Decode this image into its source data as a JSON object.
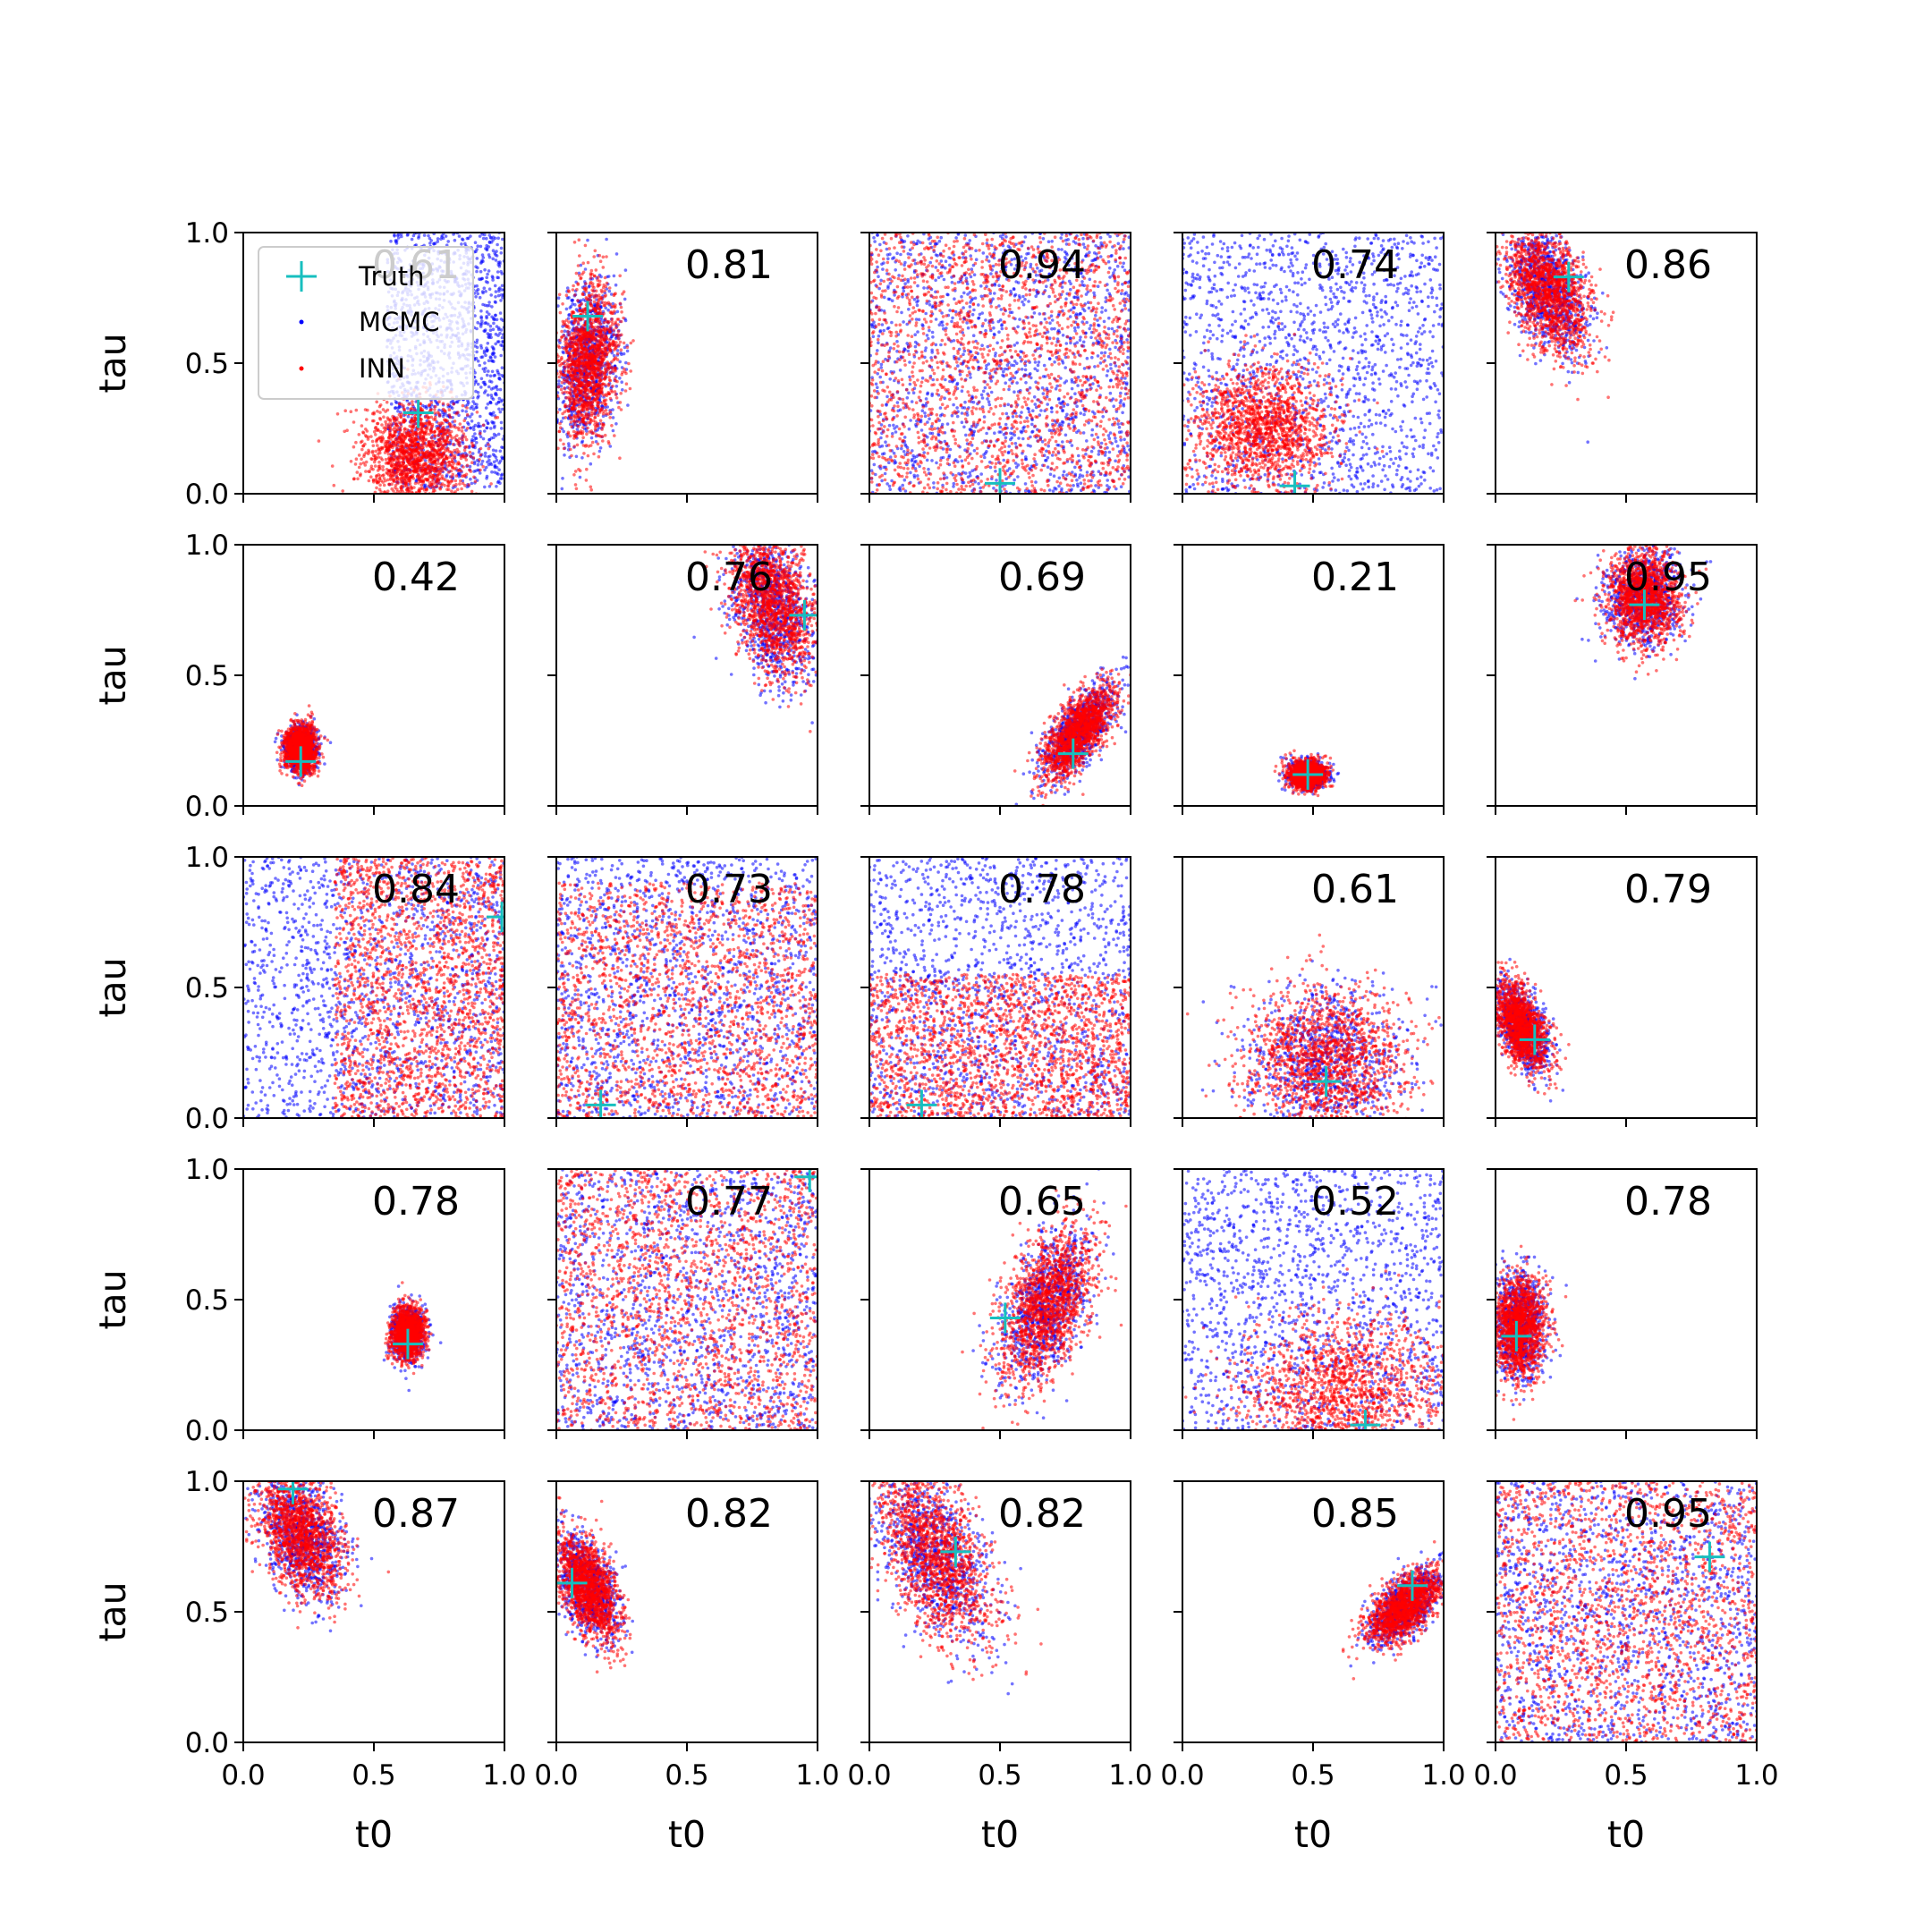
{
  "figure": {
    "grid_rows": 5,
    "grid_cols": 5,
    "xlabel": "t0",
    "ylabel": "tau",
    "xlim": [
      0.0,
      1.0
    ],
    "ylim": [
      0.0,
      1.0
    ],
    "xticks": [
      "0.0",
      "0.5",
      "1.0"
    ],
    "yticks": [
      "0.0",
      "0.5",
      "1.0"
    ]
  },
  "colors": {
    "truth": "#17bfbf",
    "mcmc": "#0000ff",
    "inn": "#ff0000",
    "axis": "#000000"
  },
  "legend": {
    "items": [
      {
        "label": "Truth",
        "marker": "plus-icon"
      },
      {
        "label": "MCMC",
        "marker": "dot-icon"
      },
      {
        "label": "INN",
        "marker": "dot-icon"
      }
    ]
  },
  "chart_data": {
    "type": "scatter",
    "description_series": [
      "Truth",
      "MCMC",
      "INN"
    ],
    "panels": [
      {
        "row": 0,
        "col": 0,
        "score": "0.61",
        "truth": [
          0.67,
          0.31
        ],
        "mcmc": {
          "kind": "uniform",
          "t0": [
            0.55,
            1.0
          ],
          "tau": [
            0.02,
            1.0
          ]
        },
        "inn": {
          "kind": "ellipse",
          "cx": 0.66,
          "cy": 0.15,
          "sx": 0.1,
          "sy": 0.1,
          "corr": 0.0
        }
      },
      {
        "row": 0,
        "col": 1,
        "score": "0.81",
        "truth": [
          0.12,
          0.68
        ],
        "mcmc": {
          "kind": "ellipse",
          "cx": 0.12,
          "cy": 0.5,
          "sx": 0.06,
          "sy": 0.15,
          "corr": 0.2
        },
        "inn": {
          "kind": "ellipse",
          "cx": 0.12,
          "cy": 0.5,
          "sx": 0.06,
          "sy": 0.16,
          "corr": 0.2
        }
      },
      {
        "row": 0,
        "col": 2,
        "score": "0.94",
        "truth": [
          0.5,
          0.04
        ],
        "mcmc": {
          "kind": "uniform",
          "t0": [
            0.0,
            1.0
          ],
          "tau": [
            0.0,
            1.0
          ]
        },
        "inn": {
          "kind": "uniform",
          "t0": [
            0.0,
            1.0
          ],
          "tau": [
            0.0,
            1.0
          ]
        }
      },
      {
        "row": 0,
        "col": 3,
        "score": "0.74",
        "truth": [
          0.43,
          0.03
        ],
        "mcmc": {
          "kind": "uniform",
          "t0": [
            0.0,
            1.0
          ],
          "tau": [
            0.0,
            1.0
          ]
        },
        "inn": {
          "kind": "ellipse",
          "cx": 0.3,
          "cy": 0.25,
          "sx": 0.14,
          "sy": 0.12,
          "corr": 0.0
        }
      },
      {
        "row": 0,
        "col": 4,
        "score": "0.86",
        "truth": [
          0.28,
          0.83
        ],
        "mcmc": {
          "kind": "ellipse",
          "cx": 0.2,
          "cy": 0.78,
          "sx": 0.08,
          "sy": 0.12,
          "corr": -0.4
        },
        "inn": {
          "kind": "ellipse",
          "cx": 0.2,
          "cy": 0.78,
          "sx": 0.08,
          "sy": 0.12,
          "corr": -0.4
        }
      },
      {
        "row": 1,
        "col": 0,
        "score": "0.42",
        "truth": [
          0.22,
          0.17
        ],
        "mcmc": {
          "kind": "ellipse",
          "cx": 0.22,
          "cy": 0.22,
          "sx": 0.03,
          "sy": 0.04,
          "corr": 0.0
        },
        "inn": {
          "kind": "ellipse",
          "cx": 0.22,
          "cy": 0.22,
          "sx": 0.03,
          "sy": 0.045,
          "corr": 0.0
        }
      },
      {
        "row": 1,
        "col": 1,
        "score": "0.76",
        "truth": [
          0.95,
          0.73
        ],
        "mcmc": {
          "kind": "ellipse",
          "cx": 0.83,
          "cy": 0.75,
          "sx": 0.08,
          "sy": 0.14,
          "corr": -0.3
        },
        "inn": {
          "kind": "ellipse",
          "cx": 0.83,
          "cy": 0.78,
          "sx": 0.08,
          "sy": 0.14,
          "corr": -0.3
        }
      },
      {
        "row": 1,
        "col": 2,
        "score": "0.69",
        "truth": [
          0.78,
          0.2
        ],
        "mcmc": {
          "kind": "ellipse",
          "cx": 0.8,
          "cy": 0.28,
          "sx": 0.07,
          "sy": 0.09,
          "corr": 0.7
        },
        "inn": {
          "kind": "ellipse",
          "cx": 0.8,
          "cy": 0.28,
          "sx": 0.07,
          "sy": 0.09,
          "corr": 0.7
        }
      },
      {
        "row": 1,
        "col": 3,
        "score": "0.21",
        "truth": [
          0.48,
          0.12
        ],
        "mcmc": {
          "kind": "ellipse",
          "cx": 0.48,
          "cy": 0.12,
          "sx": 0.035,
          "sy": 0.025,
          "corr": 0.0
        },
        "inn": {
          "kind": "ellipse",
          "cx": 0.48,
          "cy": 0.12,
          "sx": 0.035,
          "sy": 0.025,
          "corr": 0.0
        }
      },
      {
        "row": 1,
        "col": 4,
        "score": "0.95",
        "truth": [
          0.57,
          0.77
        ],
        "mcmc": {
          "kind": "ellipse",
          "cx": 0.57,
          "cy": 0.8,
          "sx": 0.07,
          "sy": 0.09,
          "corr": 0.0
        },
        "inn": {
          "kind": "ellipse",
          "cx": 0.57,
          "cy": 0.8,
          "sx": 0.07,
          "sy": 0.09,
          "corr": 0.0
        }
      },
      {
        "row": 2,
        "col": 0,
        "score": "0.84",
        "truth": [
          0.99,
          0.77
        ],
        "mcmc": {
          "kind": "uniform",
          "t0": [
            0.0,
            1.0
          ],
          "tau": [
            0.0,
            1.0
          ]
        },
        "inn": {
          "kind": "uniform",
          "t0": [
            0.35,
            1.0
          ],
          "tau": [
            0.0,
            1.0
          ]
        }
      },
      {
        "row": 2,
        "col": 1,
        "score": "0.73",
        "truth": [
          0.17,
          0.05
        ],
        "mcmc": {
          "kind": "uniform",
          "t0": [
            0.0,
            1.0
          ],
          "tau": [
            0.0,
            1.0
          ]
        },
        "inn": {
          "kind": "uniform",
          "t0": [
            0.0,
            1.0
          ],
          "tau": [
            0.0,
            0.9
          ]
        }
      },
      {
        "row": 2,
        "col": 2,
        "score": "0.78",
        "truth": [
          0.2,
          0.05
        ],
        "mcmc": {
          "kind": "uniform",
          "t0": [
            0.0,
            1.0
          ],
          "tau": [
            0.0,
            1.0
          ]
        },
        "inn": {
          "kind": "uniform",
          "t0": [
            0.0,
            1.0
          ],
          "tau": [
            0.0,
            0.55
          ]
        }
      },
      {
        "row": 2,
        "col": 3,
        "score": "0.61",
        "truth": [
          0.55,
          0.14
        ],
        "mcmc": {
          "kind": "ellipse",
          "cx": 0.55,
          "cy": 0.22,
          "sx": 0.15,
          "sy": 0.14,
          "corr": 0.0
        },
        "inn": {
          "kind": "ellipse",
          "cx": 0.55,
          "cy": 0.22,
          "sx": 0.15,
          "sy": 0.14,
          "corr": 0.0
        }
      },
      {
        "row": 2,
        "col": 4,
        "score": "0.79",
        "truth": [
          0.15,
          0.3
        ],
        "mcmc": {
          "kind": "ellipse",
          "cx": 0.1,
          "cy": 0.35,
          "sx": 0.05,
          "sy": 0.08,
          "corr": -0.5
        },
        "inn": {
          "kind": "ellipse",
          "cx": 0.1,
          "cy": 0.35,
          "sx": 0.05,
          "sy": 0.08,
          "corr": -0.5
        }
      },
      {
        "row": 3,
        "col": 0,
        "score": "0.78",
        "truth": [
          0.63,
          0.33
        ],
        "mcmc": {
          "kind": "ellipse",
          "cx": 0.63,
          "cy": 0.37,
          "sx": 0.03,
          "sy": 0.05,
          "corr": 0.0
        },
        "inn": {
          "kind": "ellipse",
          "cx": 0.63,
          "cy": 0.37,
          "sx": 0.03,
          "sy": 0.05,
          "corr": 0.0
        }
      },
      {
        "row": 3,
        "col": 1,
        "score": "0.77",
        "truth": [
          0.97,
          0.97
        ],
        "mcmc": {
          "kind": "uniform",
          "t0": [
            0.0,
            1.0
          ],
          "tau": [
            0.0,
            1.0
          ]
        },
        "inn": {
          "kind": "uniform",
          "t0": [
            0.0,
            1.0
          ],
          "tau": [
            0.0,
            1.0
          ]
        }
      },
      {
        "row": 3,
        "col": 2,
        "score": "0.65",
        "truth": [
          0.52,
          0.43
        ],
        "mcmc": {
          "kind": "ellipse",
          "cx": 0.68,
          "cy": 0.48,
          "sx": 0.09,
          "sy": 0.15,
          "corr": 0.5
        },
        "inn": {
          "kind": "ellipse",
          "cx": 0.68,
          "cy": 0.48,
          "sx": 0.09,
          "sy": 0.15,
          "corr": 0.5
        }
      },
      {
        "row": 3,
        "col": 3,
        "score": "0.52",
        "truth": [
          0.7,
          0.02
        ],
        "mcmc": {
          "kind": "uniform",
          "t0": [
            0.0,
            1.0
          ],
          "tau": [
            0.0,
            1.0
          ]
        },
        "inn": {
          "kind": "ellipse",
          "cx": 0.62,
          "cy": 0.15,
          "sx": 0.2,
          "sy": 0.15,
          "corr": 0.0
        }
      },
      {
        "row": 3,
        "col": 4,
        "score": "0.78",
        "truth": [
          0.08,
          0.36
        ],
        "mcmc": {
          "kind": "ellipse",
          "cx": 0.09,
          "cy": 0.4,
          "sx": 0.05,
          "sy": 0.1,
          "corr": 0.0
        },
        "inn": {
          "kind": "ellipse",
          "cx": 0.09,
          "cy": 0.4,
          "sx": 0.05,
          "sy": 0.1,
          "corr": 0.0
        }
      },
      {
        "row": 4,
        "col": 0,
        "score": "0.87",
        "truth": [
          0.19,
          0.97
        ],
        "mcmc": {
          "kind": "ellipse",
          "cx": 0.22,
          "cy": 0.8,
          "sx": 0.08,
          "sy": 0.12,
          "corr": -0.4
        },
        "inn": {
          "kind": "ellipse",
          "cx": 0.22,
          "cy": 0.8,
          "sx": 0.08,
          "sy": 0.12,
          "corr": -0.4
        }
      },
      {
        "row": 4,
        "col": 1,
        "score": "0.82",
        "truth": [
          0.06,
          0.61
        ],
        "mcmc": {
          "kind": "ellipse",
          "cx": 0.12,
          "cy": 0.6,
          "sx": 0.06,
          "sy": 0.1,
          "corr": -0.5
        },
        "inn": {
          "kind": "ellipse",
          "cx": 0.12,
          "cy": 0.6,
          "sx": 0.06,
          "sy": 0.1,
          "corr": -0.5
        }
      },
      {
        "row": 4,
        "col": 2,
        "score": "0.82",
        "truth": [
          0.33,
          0.73
        ],
        "mcmc": {
          "kind": "ellipse",
          "cx": 0.25,
          "cy": 0.72,
          "sx": 0.11,
          "sy": 0.17,
          "corr": -0.5
        },
        "inn": {
          "kind": "ellipse",
          "cx": 0.25,
          "cy": 0.72,
          "sx": 0.11,
          "sy": 0.17,
          "corr": -0.5
        }
      },
      {
        "row": 4,
        "col": 3,
        "score": "0.85",
        "truth": [
          0.88,
          0.6
        ],
        "mcmc": {
          "kind": "ellipse",
          "cx": 0.85,
          "cy": 0.52,
          "sx": 0.07,
          "sy": 0.07,
          "corr": 0.6
        },
        "inn": {
          "kind": "ellipse",
          "cx": 0.85,
          "cy": 0.52,
          "sx": 0.07,
          "sy": 0.07,
          "corr": 0.6
        }
      },
      {
        "row": 4,
        "col": 4,
        "score": "0.95",
        "truth": [
          0.82,
          0.71
        ],
        "mcmc": {
          "kind": "uniform",
          "t0": [
            0.0,
            1.0
          ],
          "tau": [
            0.0,
            1.0
          ]
        },
        "inn": {
          "kind": "uniform",
          "t0": [
            0.0,
            1.0
          ],
          "tau": [
            0.0,
            1.0
          ]
        }
      }
    ]
  }
}
